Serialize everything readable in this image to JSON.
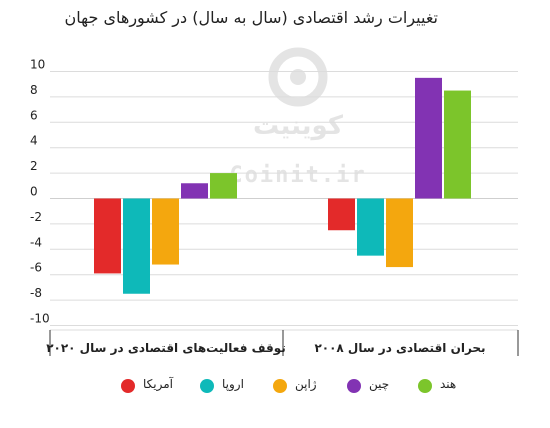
{
  "chart_data": {
    "type": "bar",
    "title": "تغییرات رشد اقتصادی (سال به سال) در کشورهای جهان",
    "categories": [
      "توقف فعالیت‌های اقتصادی در سال ۲۰۲۰",
      "بحران اقتصادی در سال ۲۰۰۸"
    ],
    "series": [
      {
        "name": "آمریکا",
        "color": "#e32a2a",
        "values": [
          -5.9,
          -2.5
        ]
      },
      {
        "name": "اروپا",
        "color": "#0eb9b9",
        "values": [
          -7.5,
          -4.5
        ]
      },
      {
        "name": "ژاپن",
        "color": "#f4a70e",
        "values": [
          -5.2,
          -5.4
        ]
      },
      {
        "name": "چین",
        "color": "#8233b3",
        "values": [
          1.2,
          9.5
        ]
      },
      {
        "name": "هند",
        "color": "#7cc52b",
        "values": [
          2.0,
          8.5
        ]
      }
    ],
    "ylim": [
      -10.5,
      10
    ],
    "yticks": [
      10,
      8,
      6,
      4,
      2,
      0,
      -2,
      -4,
      -6,
      -8,
      -10
    ],
    "ytick_labels": [
      "10",
      "8",
      "6",
      "4",
      "2",
      "0",
      "-2",
      "-4",
      "-6",
      "-8",
      "-10"
    ],
    "xlabel": "",
    "ylabel": "",
    "grid": true,
    "legend_position": "bottom"
  },
  "watermark": {
    "brand": "کوینیت",
    "url": "Coinit.ir",
    "color": "#e4e4e4"
  }
}
